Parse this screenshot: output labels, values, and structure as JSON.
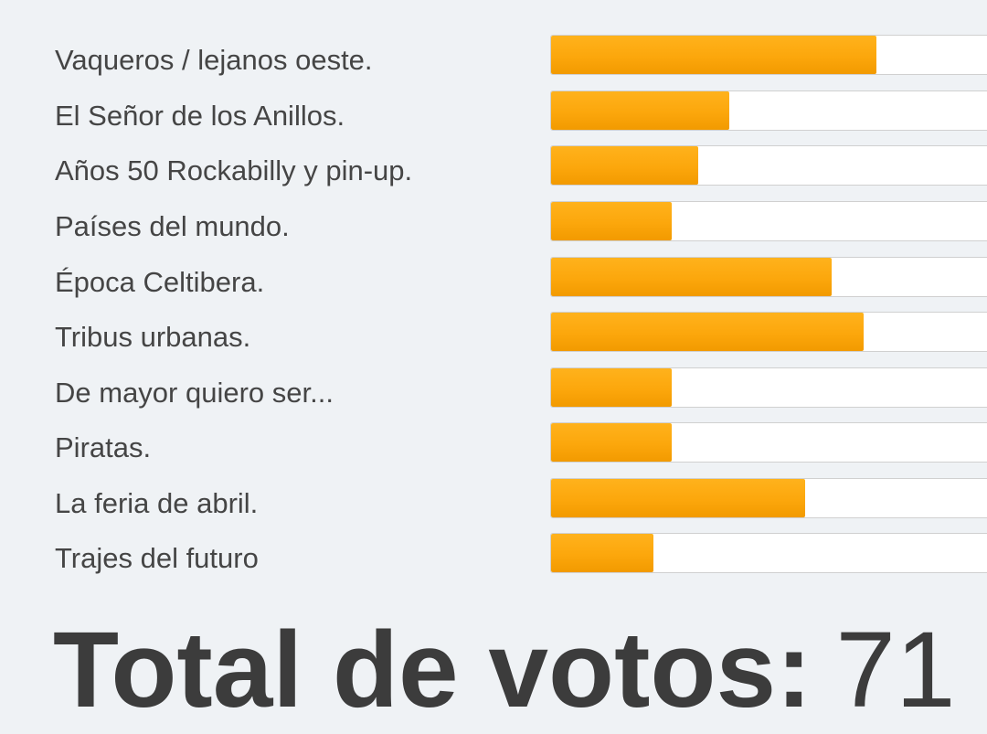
{
  "poll": {
    "options": [
      {
        "label": "Vaqueros / lejanos oeste.",
        "share": 0.73
      },
      {
        "label": "El Señor de los Anillos.",
        "share": 0.4
      },
      {
        "label": "Años 50 Rockabilly y pin-up.",
        "share": 0.33
      },
      {
        "label": "Países del mundo.",
        "share": 0.27
      },
      {
        "label": "Época Celtibera.",
        "share": 0.63
      },
      {
        "label": "Tribus urbanas.",
        "share": 0.7
      },
      {
        "label": "De mayor quiero ser...",
        "share": 0.27
      },
      {
        "label": "Piratas.",
        "share": 0.27
      },
      {
        "label": "La feria de abril.",
        "share": 0.57
      },
      {
        "label": "Trajes del futuro",
        "share": 0.23
      }
    ],
    "total_label": "Total de votos:",
    "total_count": "71"
  },
  "colors": {
    "bar_fill": "#fca70c",
    "bar_track": "#ffffff",
    "background": "#eff2f5",
    "text": "#454545"
  }
}
